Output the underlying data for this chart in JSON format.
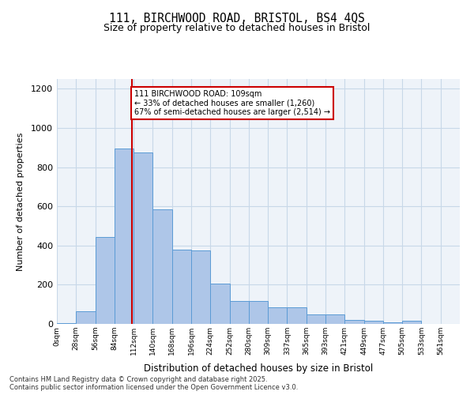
{
  "title_line1": "111, BIRCHWOOD ROAD, BRISTOL, BS4 4QS",
  "title_line2": "Size of property relative to detached houses in Bristol",
  "xlabel": "Distribution of detached houses by size in Bristol",
  "ylabel": "Number of detached properties",
  "bin_labels": [
    "0sqm",
    "28sqm",
    "56sqm",
    "84sqm",
    "112sqm",
    "140sqm",
    "168sqm",
    "196sqm",
    "224sqm",
    "252sqm",
    "280sqm",
    "309sqm",
    "337sqm",
    "365sqm",
    "393sqm",
    "421sqm",
    "449sqm",
    "477sqm",
    "505sqm",
    "533sqm",
    "561sqm"
  ],
  "bar_heights": [
    5,
    65,
    445,
    895,
    875,
    585,
    380,
    375,
    205,
    115,
    115,
    85,
    85,
    50,
    50,
    20,
    15,
    10,
    15,
    0,
    0
  ],
  "bar_color": "#aec6e8",
  "bar_edgecolor": "#5b9bd5",
  "grid_color": "#c8d8e8",
  "background_color": "#eef3f9",
  "property_line_x": 109,
  "property_line_label": "111 BIRCHWOOD ROAD: 109sqm",
  "annotation_line2": "← 33% of detached houses are smaller (1,260)",
  "annotation_line3": "67% of semi-detached houses are larger (2,514) →",
  "annotation_box_color": "#ffffff",
  "annotation_box_edgecolor": "#cc0000",
  "vline_color": "#cc0000",
  "ylim": [
    0,
    1250
  ],
  "yticks": [
    0,
    200,
    400,
    600,
    800,
    1000,
    1200
  ],
  "footnote": "Contains HM Land Registry data © Crown copyright and database right 2025.\nContains public sector information licensed under the Open Government Licence v3.0.",
  "bin_width": 28
}
